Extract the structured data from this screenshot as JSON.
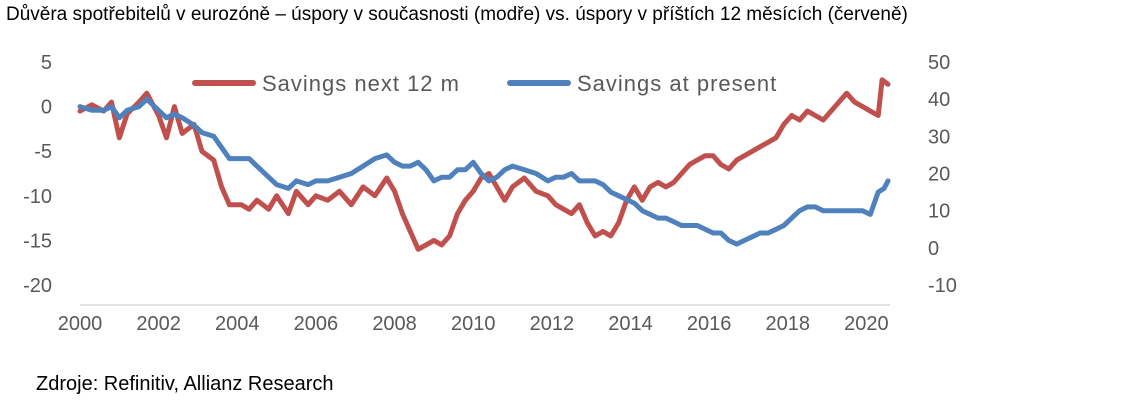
{
  "title": "Důvěra spotřebitelů v eurozóně – úspory v současnosti (modře) vs. úspory v příštích 12 měsících (červeně)",
  "source": "Zdroje: Refinitiv, Allianz Research",
  "chart_data": {
    "type": "line",
    "title": "Důvěra spotřebitelů v eurozóně – úspory v současnosti (modře) vs. úspory v příštích 12 měsících (červeně)",
    "legend_position": "top",
    "grid": false,
    "x_axis": {
      "ticks": [
        "2000",
        "2002",
        "2004",
        "2006",
        "2008",
        "2010",
        "2012",
        "2014",
        "2016",
        "2018",
        "2020"
      ],
      "range": [
        2000,
        2020.6
      ]
    },
    "y_axis_left": {
      "ticks": [
        "5",
        "0",
        "-5",
        "-10",
        "-15",
        "-20"
      ],
      "range": [
        -20,
        5
      ]
    },
    "y_axis_right": {
      "ticks": [
        "50",
        "40",
        "30",
        "20",
        "10",
        "0",
        "-10"
      ],
      "range": [
        -10,
        50
      ]
    },
    "series": [
      {
        "name": "Savings next 12 m",
        "axis": "left",
        "color": "#C0504D",
        "points": [
          [
            2000.0,
            -0.5
          ],
          [
            2000.3,
            0.2
          ],
          [
            2000.6,
            -0.5
          ],
          [
            2000.8,
            0.5
          ],
          [
            2001.0,
            -3.5
          ],
          [
            2001.2,
            -0.8
          ],
          [
            2001.5,
            0.5
          ],
          [
            2001.7,
            1.5
          ],
          [
            2002.0,
            -1.0
          ],
          [
            2002.2,
            -3.5
          ],
          [
            2002.4,
            0.0
          ],
          [
            2002.6,
            -3.0
          ],
          [
            2002.9,
            -2.0
          ],
          [
            2003.1,
            -5.0
          ],
          [
            2003.4,
            -6.0
          ],
          [
            2003.6,
            -9.0
          ],
          [
            2003.8,
            -11.0
          ],
          [
            2004.1,
            -11.0
          ],
          [
            2004.3,
            -11.5
          ],
          [
            2004.5,
            -10.5
          ],
          [
            2004.8,
            -11.5
          ],
          [
            2005.0,
            -10.0
          ],
          [
            2005.3,
            -12.0
          ],
          [
            2005.5,
            -9.5
          ],
          [
            2005.8,
            -11.0
          ],
          [
            2006.0,
            -10.0
          ],
          [
            2006.3,
            -10.5
          ],
          [
            2006.6,
            -9.5
          ],
          [
            2006.9,
            -11.0
          ],
          [
            2007.2,
            -9.0
          ],
          [
            2007.5,
            -10.0
          ],
          [
            2007.8,
            -8.0
          ],
          [
            2008.0,
            -9.5
          ],
          [
            2008.2,
            -12.0
          ],
          [
            2008.4,
            -14.0
          ],
          [
            2008.6,
            -16.0
          ],
          [
            2008.8,
            -15.5
          ],
          [
            2009.0,
            -15.0
          ],
          [
            2009.2,
            -15.5
          ],
          [
            2009.4,
            -14.5
          ],
          [
            2009.6,
            -12.0
          ],
          [
            2009.8,
            -10.5
          ],
          [
            2010.0,
            -9.5
          ],
          [
            2010.2,
            -8.0
          ],
          [
            2010.4,
            -7.5
          ],
          [
            2010.6,
            -9.0
          ],
          [
            2010.8,
            -10.5
          ],
          [
            2011.0,
            -9.0
          ],
          [
            2011.3,
            -8.0
          ],
          [
            2011.6,
            -9.5
          ],
          [
            2011.9,
            -10.0
          ],
          [
            2012.1,
            -11.0
          ],
          [
            2012.3,
            -11.5
          ],
          [
            2012.5,
            -12.0
          ],
          [
            2012.7,
            -11.0
          ],
          [
            2012.9,
            -13.0
          ],
          [
            2013.1,
            -14.5
          ],
          [
            2013.3,
            -14.0
          ],
          [
            2013.5,
            -14.5
          ],
          [
            2013.7,
            -13.0
          ],
          [
            2013.9,
            -10.5
          ],
          [
            2014.1,
            -9.0
          ],
          [
            2014.3,
            -10.5
          ],
          [
            2014.5,
            -9.0
          ],
          [
            2014.7,
            -8.5
          ],
          [
            2014.9,
            -9.0
          ],
          [
            2015.1,
            -8.5
          ],
          [
            2015.3,
            -7.5
          ],
          [
            2015.5,
            -6.5
          ],
          [
            2015.7,
            -6.0
          ],
          [
            2015.9,
            -5.5
          ],
          [
            2016.1,
            -5.5
          ],
          [
            2016.3,
            -6.5
          ],
          [
            2016.5,
            -7.0
          ],
          [
            2016.7,
            -6.0
          ],
          [
            2016.9,
            -5.5
          ],
          [
            2017.1,
            -5.0
          ],
          [
            2017.3,
            -4.5
          ],
          [
            2017.5,
            -4.0
          ],
          [
            2017.7,
            -3.5
          ],
          [
            2017.9,
            -2.0
          ],
          [
            2018.1,
            -1.0
          ],
          [
            2018.3,
            -1.5
          ],
          [
            2018.5,
            -0.5
          ],
          [
            2018.7,
            -1.0
          ],
          [
            2018.9,
            -1.5
          ],
          [
            2019.1,
            -0.5
          ],
          [
            2019.3,
            0.5
          ],
          [
            2019.5,
            1.5
          ],
          [
            2019.7,
            0.5
          ],
          [
            2019.9,
            0.0
          ],
          [
            2020.1,
            -0.5
          ],
          [
            2020.3,
            -1.0
          ],
          [
            2020.4,
            3.0
          ],
          [
            2020.55,
            2.5
          ]
        ]
      },
      {
        "name": "Savings at present",
        "axis": "right",
        "color": "#4F81BD",
        "points": [
          [
            2000.0,
            38
          ],
          [
            2000.3,
            37
          ],
          [
            2000.6,
            37
          ],
          [
            2000.8,
            38
          ],
          [
            2001.0,
            35
          ],
          [
            2001.2,
            37
          ],
          [
            2001.5,
            38
          ],
          [
            2001.7,
            40
          ],
          [
            2002.0,
            37
          ],
          [
            2002.2,
            35
          ],
          [
            2002.4,
            36
          ],
          [
            2002.6,
            35
          ],
          [
            2002.9,
            33
          ],
          [
            2003.1,
            31
          ],
          [
            2003.4,
            30
          ],
          [
            2003.6,
            27
          ],
          [
            2003.8,
            24
          ],
          [
            2004.1,
            24
          ],
          [
            2004.3,
            24
          ],
          [
            2004.5,
            22
          ],
          [
            2004.8,
            19
          ],
          [
            2005.0,
            17
          ],
          [
            2005.3,
            16
          ],
          [
            2005.5,
            18
          ],
          [
            2005.8,
            17
          ],
          [
            2006.0,
            18
          ],
          [
            2006.3,
            18
          ],
          [
            2006.6,
            19
          ],
          [
            2006.9,
            20
          ],
          [
            2007.2,
            22
          ],
          [
            2007.5,
            24
          ],
          [
            2007.8,
            25
          ],
          [
            2008.0,
            23
          ],
          [
            2008.2,
            22
          ],
          [
            2008.4,
            22
          ],
          [
            2008.6,
            23
          ],
          [
            2008.8,
            21
          ],
          [
            2009.0,
            18
          ],
          [
            2009.2,
            19
          ],
          [
            2009.4,
            19
          ],
          [
            2009.6,
            21
          ],
          [
            2009.8,
            21
          ],
          [
            2010.0,
            23
          ],
          [
            2010.2,
            20
          ],
          [
            2010.4,
            18
          ],
          [
            2010.6,
            19
          ],
          [
            2010.8,
            21
          ],
          [
            2011.0,
            22
          ],
          [
            2011.3,
            21
          ],
          [
            2011.6,
            20
          ],
          [
            2011.9,
            18
          ],
          [
            2012.1,
            19
          ],
          [
            2012.3,
            19
          ],
          [
            2012.5,
            20
          ],
          [
            2012.7,
            18
          ],
          [
            2012.9,
            18
          ],
          [
            2013.1,
            18
          ],
          [
            2013.3,
            17
          ],
          [
            2013.5,
            15
          ],
          [
            2013.7,
            14
          ],
          [
            2013.9,
            13
          ],
          [
            2014.1,
            12
          ],
          [
            2014.3,
            10
          ],
          [
            2014.5,
            9
          ],
          [
            2014.7,
            8
          ],
          [
            2014.9,
            8
          ],
          [
            2015.1,
            7
          ],
          [
            2015.3,
            6
          ],
          [
            2015.5,
            6
          ],
          [
            2015.7,
            6
          ],
          [
            2015.9,
            5
          ],
          [
            2016.1,
            4
          ],
          [
            2016.3,
            4
          ],
          [
            2016.5,
            2
          ],
          [
            2016.7,
            1
          ],
          [
            2016.9,
            2
          ],
          [
            2017.1,
            3
          ],
          [
            2017.3,
            4
          ],
          [
            2017.5,
            4
          ],
          [
            2017.7,
            5
          ],
          [
            2017.9,
            6
          ],
          [
            2018.1,
            8
          ],
          [
            2018.3,
            10
          ],
          [
            2018.5,
            11
          ],
          [
            2018.7,
            11
          ],
          [
            2018.9,
            10
          ],
          [
            2019.1,
            10
          ],
          [
            2019.3,
            10
          ],
          [
            2019.5,
            10
          ],
          [
            2019.7,
            10
          ],
          [
            2019.9,
            10
          ],
          [
            2020.1,
            9
          ],
          [
            2020.3,
            15
          ],
          [
            2020.45,
            16
          ],
          [
            2020.55,
            18
          ]
        ]
      }
    ]
  }
}
